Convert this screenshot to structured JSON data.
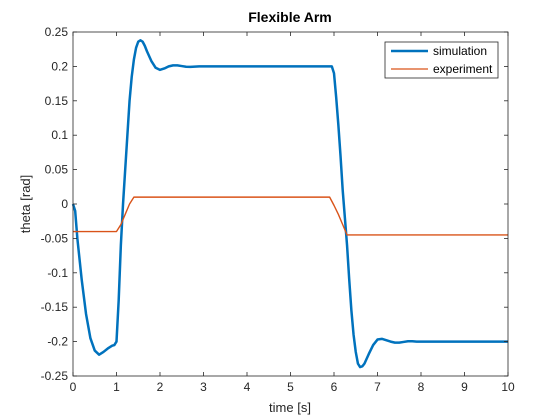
{
  "chart_data": {
    "type": "line",
    "title": "Flexible Arm",
    "xlabel": "time [s]",
    "ylabel": "theta [rad]",
    "xlim": [
      0,
      10
    ],
    "ylim": [
      -0.25,
      0.25
    ],
    "xticks": [
      0,
      1,
      2,
      3,
      4,
      5,
      6,
      7,
      8,
      9,
      10
    ],
    "xtick_labels": [
      "0",
      "1",
      "2",
      "3",
      "4",
      "5",
      "6",
      "7",
      "8",
      "9",
      "10"
    ],
    "yticks": [
      -0.25,
      -0.2,
      -0.15,
      -0.1,
      -0.05,
      0,
      0.05,
      0.1,
      0.15,
      0.2,
      0.25
    ],
    "ytick_labels": [
      "-0.25",
      "-0.2",
      "-0.15",
      "-0.1",
      "-0.05",
      "0",
      "0.05",
      "0.1",
      "0.15",
      "0.2",
      "0.25"
    ],
    "grid": false,
    "legend_position": "top-right",
    "series": [
      {
        "name": "simulation",
        "color": "#0072BD",
        "x": [
          0,
          0.05,
          0.1,
          0.2,
          0.3,
          0.4,
          0.5,
          0.6,
          0.7,
          0.8,
          0.9,
          0.95,
          1.0,
          1.05,
          1.1,
          1.15,
          1.2,
          1.25,
          1.3,
          1.35,
          1.4,
          1.45,
          1.5,
          1.55,
          1.6,
          1.65,
          1.7,
          1.8,
          1.9,
          2.0,
          2.1,
          2.2,
          2.3,
          2.4,
          2.5,
          2.6,
          2.7,
          2.8,
          2.9,
          3.0,
          3.5,
          4.0,
          4.5,
          5.0,
          5.5,
          5.9,
          5.95,
          6.0,
          6.05,
          6.1,
          6.15,
          6.2,
          6.25,
          6.3,
          6.35,
          6.4,
          6.45,
          6.5,
          6.55,
          6.6,
          6.65,
          6.7,
          6.8,
          6.9,
          7.0,
          7.1,
          7.2,
          7.3,
          7.4,
          7.5,
          7.6,
          7.7,
          7.8,
          7.9,
          8.0,
          8.5,
          9.0,
          9.5,
          10.0
        ],
        "y": [
          0,
          -0.01,
          -0.05,
          -0.11,
          -0.16,
          -0.195,
          -0.213,
          -0.219,
          -0.215,
          -0.21,
          -0.206,
          -0.205,
          -0.2,
          -0.14,
          -0.06,
          0.0,
          0.05,
          0.1,
          0.15,
          0.185,
          0.21,
          0.227,
          0.236,
          0.238,
          0.236,
          0.23,
          0.222,
          0.208,
          0.198,
          0.195,
          0.197,
          0.2,
          0.2015,
          0.2015,
          0.2005,
          0.1995,
          0.1993,
          0.1996,
          0.2,
          0.2,
          0.2,
          0.2,
          0.2,
          0.2,
          0.2,
          0.2,
          0.2,
          0.19,
          0.155,
          0.115,
          0.07,
          0.02,
          -0.02,
          -0.06,
          -0.11,
          -0.155,
          -0.19,
          -0.215,
          -0.232,
          -0.237,
          -0.236,
          -0.232,
          -0.218,
          -0.205,
          -0.197,
          -0.196,
          -0.198,
          -0.2,
          -0.2015,
          -0.2015,
          -0.2005,
          -0.1995,
          -0.1995,
          -0.2,
          -0.2,
          -0.2,
          -0.2,
          -0.2,
          -0.2
        ]
      },
      {
        "name": "experiment",
        "color": "#D95319",
        "x": [
          0,
          0.5,
          1.0,
          1.1,
          1.2,
          1.3,
          1.4,
          2.0,
          3.0,
          4.0,
          5.0,
          5.9,
          6.0,
          6.1,
          6.2,
          6.3,
          7.0,
          8.0,
          9.0,
          10.0
        ],
        "y": [
          -0.04,
          -0.04,
          -0.04,
          -0.03,
          -0.015,
          0.0,
          0.01,
          0.01,
          0.01,
          0.01,
          0.01,
          0.01,
          -0.002,
          -0.015,
          -0.03,
          -0.045,
          -0.045,
          -0.045,
          -0.045,
          -0.045
        ]
      }
    ]
  }
}
